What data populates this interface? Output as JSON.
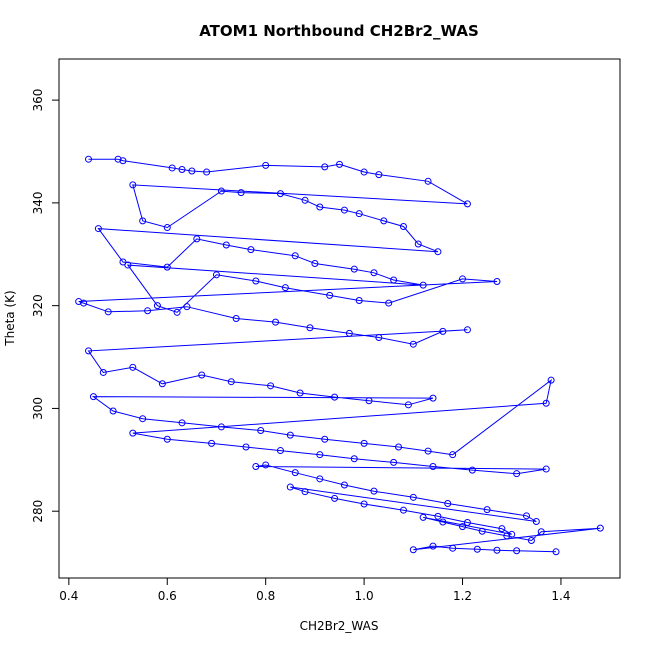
{
  "chart_data": {
    "type": "scatter",
    "title": "ATOM1 Northbound CH2Br2_WAS",
    "xlabel": "CH2Br2_WAS",
    "ylabel": "Theta (K)",
    "xlim": [
      0.38,
      1.52
    ],
    "ylim": [
      267,
      368
    ],
    "xticks": [
      "0.4",
      "0.6",
      "0.8",
      "1.0",
      "1.2",
      "1.4"
    ],
    "yticks": [
      "280",
      "300",
      "320",
      "340",
      "360"
    ],
    "grid": false,
    "color": "#0000ff",
    "points_connected": true,
    "series": [
      {
        "x": [
          0.44,
          0.5,
          0.51,
          0.61,
          0.63,
          0.65,
          0.68,
          0.8,
          0.92,
          0.95,
          1.0,
          1.03,
          1.13,
          1.21,
          0.53,
          0.55,
          0.6,
          0.71,
          0.75,
          0.83,
          0.88,
          0.91,
          0.96,
          0.99,
          1.04,
          1.08,
          1.11,
          1.15,
          0.46,
          0.51,
          0.6,
          0.66,
          0.72,
          0.77,
          0.86,
          0.9,
          0.98,
          1.02,
          1.06,
          1.12,
          0.52,
          0.58,
          0.62,
          0.7,
          0.78,
          0.84,
          0.93,
          0.99,
          1.05,
          1.2,
          1.27,
          0.42,
          0.43,
          0.48,
          0.56,
          0.64,
          0.74,
          0.82,
          0.89,
          0.97,
          1.03,
          1.1,
          1.16,
          1.21,
          0.44,
          0.47,
          0.53,
          0.59,
          0.67,
          0.73,
          0.81,
          0.87,
          0.94,
          1.01,
          1.09,
          1.14,
          0.45,
          0.49,
          0.55,
          0.63,
          0.71,
          0.79,
          0.85,
          0.92,
          1.0,
          1.07,
          1.13,
          1.18,
          1.38,
          1.37,
          0.53,
          0.6,
          0.69,
          0.76,
          0.83,
          0.91,
          0.98,
          1.06,
          1.14,
          1.22,
          1.31,
          1.37,
          0.78,
          0.8,
          0.86,
          0.91,
          0.96,
          1.02,
          1.1,
          1.17,
          1.25,
          1.33,
          1.35,
          0.85,
          0.88,
          0.94,
          1.0,
          1.08,
          1.15,
          1.21,
          1.28,
          1.3,
          1.12,
          1.16,
          1.2,
          1.24,
          1.29,
          1.34,
          1.36,
          1.48,
          1.1,
          1.14,
          1.18,
          1.23,
          1.27,
          1.31,
          1.39
        ],
        "y": [
          348.5,
          348.5,
          348.2,
          346.8,
          346.5,
          346.2,
          346.0,
          347.3,
          347.0,
          347.5,
          346.0,
          345.5,
          344.2,
          339.8,
          343.5,
          336.5,
          335.2,
          342.3,
          342.0,
          341.8,
          340.5,
          339.2,
          338.6,
          337.9,
          336.5,
          335.4,
          332.0,
          330.5,
          335.0,
          328.5,
          327.5,
          333.0,
          331.8,
          330.9,
          329.7,
          328.2,
          327.1,
          326.4,
          325.0,
          324.0,
          327.9,
          320.0,
          318.7,
          326.0,
          324.8,
          323.5,
          322.0,
          321.0,
          320.5,
          325.2,
          324.7,
          320.8,
          320.5,
          318.8,
          319.0,
          319.8,
          317.5,
          316.8,
          315.7,
          314.6,
          313.8,
          312.5,
          315.0,
          315.3,
          311.2,
          307.0,
          308.0,
          304.8,
          306.5,
          305.2,
          304.4,
          303.0,
          302.2,
          301.5,
          300.7,
          302.0,
          302.3,
          299.5,
          298.0,
          297.2,
          296.4,
          295.7,
          294.8,
          294.0,
          293.2,
          292.5,
          291.7,
          291.0,
          305.5,
          301.0,
          295.2,
          294.0,
          293.2,
          292.5,
          291.8,
          291.0,
          290.2,
          289.5,
          288.7,
          288.0,
          287.3,
          288.2,
          288.7,
          289.0,
          287.5,
          286.3,
          285.1,
          283.9,
          282.7,
          281.5,
          280.3,
          279.1,
          278.0,
          284.7,
          283.8,
          282.5,
          281.4,
          280.2,
          279.0,
          277.8,
          276.6,
          275.5,
          278.8,
          277.9,
          277.0,
          276.1,
          275.2,
          274.3,
          276.0,
          276.7,
          272.5,
          273.2,
          272.8,
          272.6,
          272.4,
          272.3,
          272.1
        ]
      }
    ]
  }
}
